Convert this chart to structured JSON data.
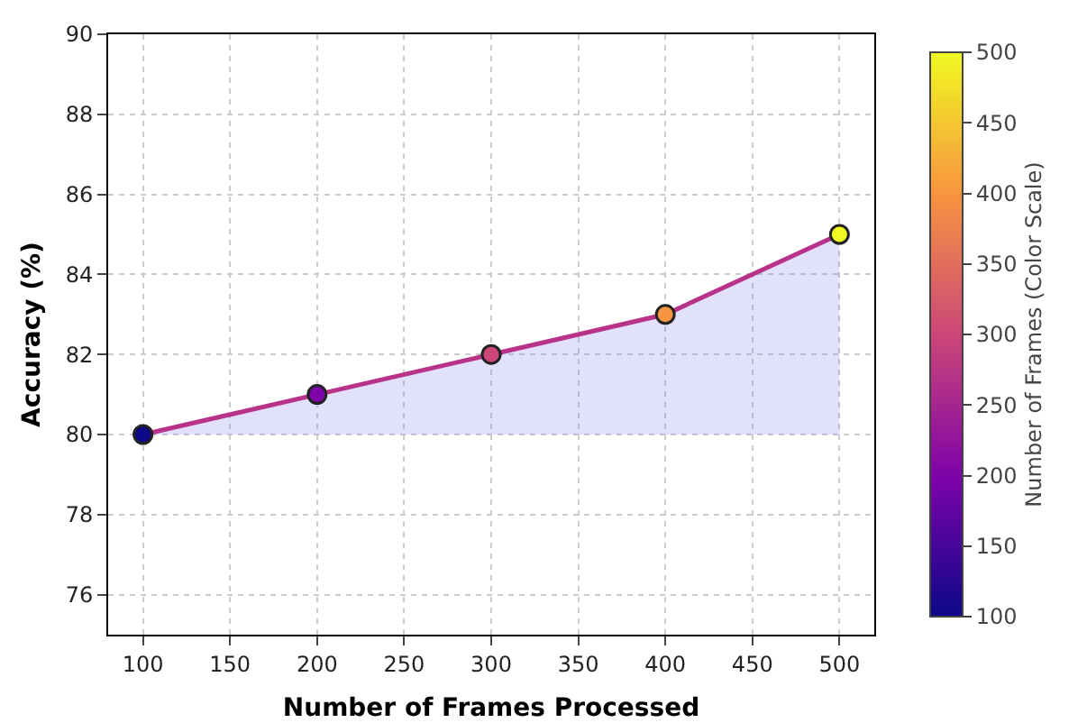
{
  "chart_data": {
    "type": "line",
    "xlabel": "Number of Frames Processed",
    "ylabel": "Accuracy (%)",
    "clabel": "Number of Frames (Color Scale)",
    "x": [
      100,
      200,
      300,
      400,
      500
    ],
    "series": [
      {
        "color": "#b83289",
        "values": [
          80,
          81,
          82,
          83,
          85
        ],
        "lower": [
          80,
          80,
          80,
          80,
          80
        ],
        "upper": [
          80,
          81,
          82,
          83,
          85
        ]
      },
      {
        "type": "scatter",
        "marker": "circle",
        "values": [
          80,
          81,
          82,
          83,
          85
        ],
        "cvalues": [
          100,
          200,
          300,
          400,
          500
        ],
        "colors": [
          "#0d0887",
          "#7e03a8",
          "#cc4778",
          "#f89540",
          "#f0f921"
        ]
      }
    ],
    "xlim": [
      80,
      520
    ],
    "xticks": [
      100,
      150,
      200,
      250,
      300,
      350,
      400,
      450,
      500
    ],
    "ylim": [
      75,
      90
    ],
    "yticks": [
      76,
      78,
      80,
      82,
      84,
      86,
      88,
      90
    ],
    "clim": [
      100,
      500
    ],
    "cticks": [
      100,
      150,
      200,
      250,
      300,
      350,
      400,
      450,
      500
    ],
    "grid": true,
    "line_style": "solid"
  }
}
